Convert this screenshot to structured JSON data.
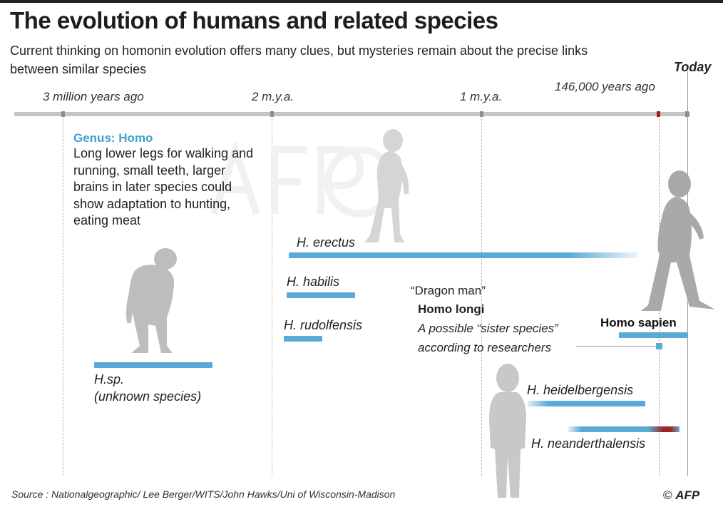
{
  "title": "The evolution of humans and related species",
  "subtitle": "Current thinking on homonin evolution offers many clues, but mysteries remain about the precise links between similar species",
  "timeline": {
    "today_label": "Today",
    "tick_labels": [
      "3 million years ago",
      "2 m.y.a.",
      "1 m.y.a.",
      "146,000 years ago"
    ]
  },
  "genus": {
    "title": "Genus: Homo",
    "description": "Long lower legs for walking and running, small teeth, larger brains in later species could show adaptation to hunting, eating meat"
  },
  "species": {
    "erectus": "H. erectus",
    "habilis": "H. habilis",
    "rudolfensis": "H. rudolfensis",
    "hsp_line1": "H.sp.",
    "hsp_line2": "(unknown species)",
    "heidelbergensis": "H. heidelbergensis",
    "neanderthalensis": "H. neanderthalensis",
    "sapien": "Homo sapien"
  },
  "longi": {
    "quote": "“Dragon man”",
    "name": "Homo longi",
    "description_line1": "A possible “sister species”",
    "description_line2": "according to researchers"
  },
  "footer": {
    "source": "Source : Nationalgeographic/ Lee Berger/WITS/John Hawks/Uni of Wisconsin-Madison",
    "copyright_symbol": "©",
    "agency": "AFP"
  },
  "colors": {
    "bar_blue": "#5aa9d6",
    "genus_blue": "#3fa0d0",
    "neanderthal_red": "#9e2626",
    "axis_gray": "#c4c4c4",
    "figure_gray": "#bdbdbd"
  }
}
